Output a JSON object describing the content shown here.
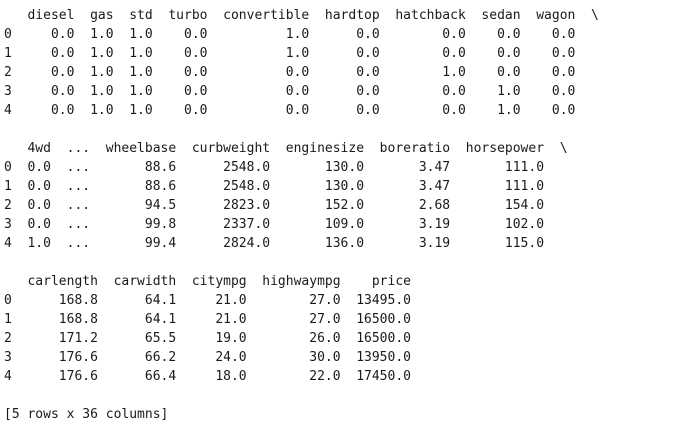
{
  "console": {
    "blocks": [
      {
        "header": "   diesel  gas  std  turbo  convertible  hardtop  hatchback  sedan  wagon  \\",
        "rows": [
          "0     0.0  1.0  1.0    0.0          1.0      0.0        0.0    0.0    0.0",
          "1     0.0  1.0  1.0    0.0          1.0      0.0        0.0    0.0    0.0",
          "2     0.0  1.0  1.0    0.0          0.0      0.0        1.0    0.0    0.0",
          "3     0.0  1.0  1.0    0.0          0.0      0.0        0.0    1.0    0.0",
          "4     0.0  1.0  1.0    0.0          0.0      0.0        0.0    1.0    0.0"
        ]
      },
      {
        "header": "   4wd  ...  wheelbase  curbweight  enginesize  boreratio  horsepower  \\",
        "rows": [
          "0  0.0  ...       88.6      2548.0       130.0       3.47       111.0",
          "1  0.0  ...       88.6      2548.0       130.0       3.47       111.0",
          "2  0.0  ...       94.5      2823.0       152.0       2.68       154.0",
          "3  0.0  ...       99.8      2337.0       109.0       3.19       102.0",
          "4  1.0  ...       99.4      2824.0       136.0       3.19       115.0"
        ]
      },
      {
        "header": "   carlength  carwidth  citympg  highwaympg    price",
        "rows": [
          "0      168.8      64.1     21.0        27.0  13495.0",
          "1      168.8      64.1     21.0        27.0  16500.0",
          "2      171.2      65.5     19.0        26.0  16500.0",
          "3      176.6      66.2     24.0        30.0  13950.0",
          "4      176.6      66.4     18.0        22.0  17450.0"
        ]
      }
    ],
    "footer": "[5 rows x 36 columns]"
  }
}
